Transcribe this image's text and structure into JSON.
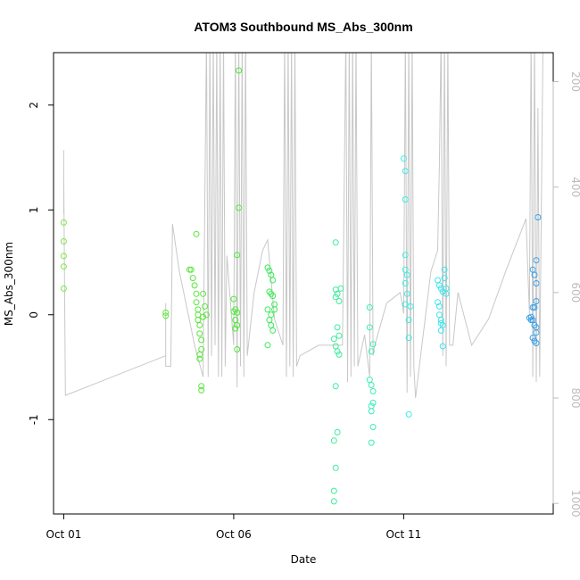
{
  "chart_data": {
    "type": "scatter",
    "title": "ATOM3 Southbound MS_Abs_300nm",
    "xlabel": "Date",
    "ylabel": "MS_Abs_300nm",
    "xlim": [
      -0.3,
      14.4
    ],
    "ylim": [
      -1.9,
      2.5
    ],
    "x_ticks": [
      {
        "value": 0,
        "label": "Oct 01"
      },
      {
        "value": 5,
        "label": "Oct 06"
      },
      {
        "value": 10,
        "label": "Oct 11"
      }
    ],
    "y_ticks": [
      {
        "value": -1,
        "label": "-1"
      },
      {
        "value": 0,
        "label": "0"
      },
      {
        "value": 1,
        "label": "1"
      },
      {
        "value": 2,
        "label": "2"
      }
    ],
    "right_axis": {
      "lim": [
        1020,
        145
      ],
      "ticks": [
        {
          "value": 200,
          "label": "200"
        },
        {
          "value": 400,
          "label": "400"
        },
        {
          "value": 600,
          "label": "600"
        },
        {
          "value": 800,
          "label": "800"
        },
        {
          "value": 1000,
          "label": "1000"
        }
      ],
      "color": "#bdbdbd"
    },
    "altitude_track": {
      "color": "#c8c8c8",
      "points": [
        [
          0.0,
          330
        ],
        [
          0.0,
          450
        ],
        [
          0.0,
          390
        ],
        [
          0.0,
          370
        ],
        [
          0.05,
          795
        ],
        [
          3.0,
          720
        ],
        [
          3.0,
          620
        ],
        [
          3.0,
          740
        ],
        [
          3.15,
          740
        ],
        [
          3.2,
          470
        ],
        [
          3.4,
          560
        ],
        [
          3.85,
          700
        ],
        [
          4.1,
          760
        ],
        [
          4.2,
          0
        ],
        [
          4.25,
          760
        ],
        [
          4.3,
          0
        ],
        [
          4.35,
          720
        ],
        [
          4.4,
          0
        ],
        [
          4.45,
          700
        ],
        [
          4.5,
          0
        ],
        [
          4.55,
          760
        ],
        [
          4.6,
          0
        ],
        [
          4.65,
          760
        ],
        [
          4.7,
          0
        ],
        [
          4.75,
          740
        ],
        [
          4.8,
          530
        ],
        [
          5.0,
          700
        ],
        [
          5.05,
          0
        ],
        [
          5.1,
          780
        ],
        [
          5.15,
          0
        ],
        [
          5.2,
          740
        ],
        [
          5.25,
          0
        ],
        [
          5.3,
          760
        ],
        [
          5.35,
          0
        ],
        [
          5.4,
          720
        ],
        [
          5.6,
          600
        ],
        [
          5.85,
          520
        ],
        [
          6.0,
          500
        ],
        [
          6.2,
          650
        ],
        [
          6.45,
          700
        ],
        [
          6.5,
          0
        ],
        [
          6.55,
          760
        ],
        [
          6.6,
          0
        ],
        [
          6.65,
          740
        ],
        [
          6.7,
          0
        ],
        [
          6.75,
          760
        ],
        [
          6.8,
          0
        ],
        [
          6.85,
          740
        ],
        [
          6.95,
          720
        ],
        [
          7.5,
          700
        ],
        [
          8.2,
          700
        ],
        [
          8.3,
          0
        ],
        [
          8.35,
          770
        ],
        [
          8.4,
          0
        ],
        [
          8.45,
          760
        ],
        [
          8.5,
          0
        ],
        [
          8.55,
          740
        ],
        [
          8.6,
          0
        ],
        [
          8.65,
          740
        ],
        [
          8.85,
          680
        ],
        [
          9.0,
          760
        ],
        [
          9.05,
          0
        ],
        [
          9.1,
          720
        ],
        [
          9.15,
          700
        ],
        [
          9.5,
          620
        ],
        [
          9.9,
          600
        ],
        [
          10.0,
          640
        ],
        [
          10.05,
          0
        ],
        [
          10.1,
          790
        ],
        [
          10.15,
          0
        ],
        [
          10.2,
          760
        ],
        [
          10.25,
          0
        ],
        [
          10.3,
          740
        ],
        [
          10.35,
          800
        ],
        [
          10.5,
          720
        ],
        [
          10.8,
          560
        ],
        [
          11.0,
          520
        ],
        [
          11.05,
          360
        ],
        [
          11.1,
          0
        ],
        [
          11.15,
          720
        ],
        [
          11.2,
          0
        ],
        [
          11.25,
          740
        ],
        [
          11.3,
          0
        ],
        [
          11.35,
          700
        ],
        [
          11.45,
          700
        ],
        [
          11.6,
          600
        ],
        [
          12.0,
          700
        ],
        [
          12.5,
          650
        ],
        [
          13.0,
          560
        ],
        [
          13.6,
          460
        ],
        [
          13.7,
          640
        ],
        [
          13.75,
          0
        ],
        [
          13.8,
          760
        ],
        [
          13.85,
          0
        ],
        [
          13.9,
          770
        ],
        [
          13.95,
          250
        ],
        [
          14.0,
          760
        ],
        [
          14.1,
          0
        ]
      ]
    },
    "series": [
      {
        "color_scale": "date",
        "points": [
          [
            0.0,
            0.88,
            "#7ee84a"
          ],
          [
            0.0,
            0.7,
            "#7ee84a"
          ],
          [
            0.0,
            0.56,
            "#7ee84a"
          ],
          [
            0.0,
            0.46,
            "#7ee84a"
          ],
          [
            0.0,
            0.25,
            "#7ee84a"
          ],
          [
            3.0,
            0.02,
            "#62e63a"
          ],
          [
            3.0,
            -0.01,
            "#62e63a"
          ],
          [
            3.7,
            0.43,
            "#58e63a"
          ],
          [
            3.75,
            0.43,
            "#58e63a"
          ],
          [
            3.8,
            0.35,
            "#58e63a"
          ],
          [
            3.85,
            0.28,
            "#58e63a"
          ],
          [
            3.9,
            0.2,
            "#58e63a"
          ],
          [
            3.9,
            0.12,
            "#58e63a"
          ],
          [
            3.95,
            0.05,
            "#58e63a"
          ],
          [
            3.95,
            0.0,
            "#58e63a"
          ],
          [
            3.95,
            -0.05,
            "#58e63a"
          ],
          [
            4.0,
            -0.1,
            "#58e63a"
          ],
          [
            4.0,
            -0.18,
            "#58e63a"
          ],
          [
            4.05,
            -0.24,
            "#58e63a"
          ],
          [
            4.05,
            -0.33,
            "#58e63a"
          ],
          [
            4.0,
            -0.38,
            "#58e63a"
          ],
          [
            4.0,
            -0.42,
            "#58e63a"
          ],
          [
            4.05,
            -0.68,
            "#58e63a"
          ],
          [
            4.05,
            -0.72,
            "#58e63a"
          ],
          [
            3.9,
            0.77,
            "#58e63a"
          ],
          [
            4.1,
            0.2,
            "#58e63a"
          ],
          [
            4.15,
            0.08,
            "#58e63a"
          ],
          [
            4.2,
            0.0,
            "#58e63a"
          ],
          [
            4.1,
            -0.02,
            "#58e63a"
          ],
          [
            5.0,
            0.15,
            "#4ee83a"
          ],
          [
            5.05,
            0.05,
            "#4ee83a"
          ],
          [
            5.1,
            0.02,
            "#4ee83a"
          ],
          [
            5.05,
            -0.05,
            "#4ee83a"
          ],
          [
            5.1,
            -0.1,
            "#4ee83a"
          ],
          [
            5.05,
            -0.13,
            "#4ee83a"
          ],
          [
            5.1,
            -0.33,
            "#4ee83a"
          ],
          [
            5.1,
            0.57,
            "#4ee83a"
          ],
          [
            5.15,
            1.02,
            "#4ee83a"
          ],
          [
            5.15,
            2.33,
            "#4ee83a"
          ],
          [
            5.0,
            0.03,
            "#4ee83a"
          ],
          [
            6.0,
            0.45,
            "#3aeb58"
          ],
          [
            6.05,
            0.42,
            "#3aeb58"
          ],
          [
            6.1,
            0.38,
            "#3aeb58"
          ],
          [
            6.15,
            0.33,
            "#3aeb58"
          ],
          [
            6.05,
            0.22,
            "#3aeb58"
          ],
          [
            6.1,
            0.2,
            "#3aeb58"
          ],
          [
            6.15,
            0.18,
            "#3aeb58"
          ],
          [
            6.0,
            0.05,
            "#3aeb58"
          ],
          [
            6.1,
            0.0,
            "#3aeb58"
          ],
          [
            6.05,
            -0.05,
            "#3aeb58"
          ],
          [
            6.1,
            -0.1,
            "#3aeb58"
          ],
          [
            6.15,
            -0.15,
            "#3aeb58"
          ],
          [
            6.0,
            -0.29,
            "#3aeb58"
          ],
          [
            6.2,
            0.1,
            "#3aeb58"
          ],
          [
            6.2,
            0.05,
            "#3aeb58"
          ],
          [
            8.0,
            0.69,
            "#3aee9a"
          ],
          [
            8.0,
            0.24,
            "#3aee9a"
          ],
          [
            8.05,
            0.2,
            "#3aee9a"
          ],
          [
            8.1,
            0.13,
            "#3aee9a"
          ],
          [
            8.0,
            0.17,
            "#3aee9a"
          ],
          [
            8.15,
            0.25,
            "#3aee9a"
          ],
          [
            8.05,
            -0.12,
            "#3aee9a"
          ],
          [
            8.1,
            -0.2,
            "#3aee9a"
          ],
          [
            7.95,
            -0.23,
            "#3aee9a"
          ],
          [
            8.0,
            -0.3,
            "#3aee9a"
          ],
          [
            8.05,
            -0.35,
            "#3aee9a"
          ],
          [
            8.1,
            -0.38,
            "#3aee9a"
          ],
          [
            8.0,
            -0.68,
            "#3aee9a"
          ],
          [
            8.05,
            -1.12,
            "#3aee9a"
          ],
          [
            7.95,
            -1.2,
            "#3aee9a"
          ],
          [
            8.0,
            -1.46,
            "#3aee9a"
          ],
          [
            7.95,
            -1.68,
            "#3aee9a"
          ],
          [
            7.95,
            -1.78,
            "#3aee9a"
          ],
          [
            9.0,
            0.07,
            "#3aeeb8"
          ],
          [
            9.0,
            -0.12,
            "#3aeeb8"
          ],
          [
            9.05,
            -0.35,
            "#3aeeb8"
          ],
          [
            9.1,
            -0.28,
            "#3aeeb8"
          ],
          [
            9.0,
            -0.62,
            "#3aeeb8"
          ],
          [
            9.05,
            -0.67,
            "#3aeeb8"
          ],
          [
            9.1,
            -0.73,
            "#3aeeb8"
          ],
          [
            9.1,
            -0.84,
            "#3aeeb8"
          ],
          [
            9.05,
            -0.87,
            "#3aeeb8"
          ],
          [
            9.05,
            -0.92,
            "#3aeeb8"
          ],
          [
            9.1,
            -1.07,
            "#3aeeb8"
          ],
          [
            9.05,
            -1.22,
            "#3aeeb8"
          ],
          [
            10.0,
            1.49,
            "#3aeee0"
          ],
          [
            10.05,
            1.37,
            "#3aeee0"
          ],
          [
            10.05,
            1.1,
            "#3aeee0"
          ],
          [
            10.05,
            0.57,
            "#3aeee0"
          ],
          [
            10.05,
            0.43,
            "#3aeee0"
          ],
          [
            10.1,
            0.38,
            "#3aeee0"
          ],
          [
            10.05,
            0.3,
            "#3aeee0"
          ],
          [
            10.1,
            0.2,
            "#3aeee0"
          ],
          [
            10.05,
            0.1,
            "#3aeee0"
          ],
          [
            10.2,
            0.08,
            "#3aeee0"
          ],
          [
            10.15,
            -0.05,
            "#3aeee0"
          ],
          [
            10.15,
            -0.22,
            "#3aeee0"
          ],
          [
            10.15,
            -0.95,
            "#3aeee0"
          ],
          [
            11.0,
            0.33,
            "#3ae6ee"
          ],
          [
            11.05,
            0.28,
            "#3ae6ee"
          ],
          [
            11.1,
            0.25,
            "#3ae6ee"
          ],
          [
            11.15,
            0.22,
            "#3ae6ee"
          ],
          [
            11.2,
            0.35,
            "#3ae6ee"
          ],
          [
            11.2,
            0.43,
            "#3ae6ee"
          ],
          [
            11.25,
            0.2,
            "#3ae6ee"
          ],
          [
            11.25,
            0.25,
            "#3ae6ee"
          ],
          [
            11.0,
            0.12,
            "#3ae6ee"
          ],
          [
            11.05,
            0.08,
            "#3ae6ee"
          ],
          [
            11.05,
            0.0,
            "#3ae6ee"
          ],
          [
            11.1,
            -0.05,
            "#3ae6ee"
          ],
          [
            11.1,
            -0.08,
            "#3ae6ee"
          ],
          [
            11.15,
            -0.1,
            "#3ae6ee"
          ],
          [
            11.1,
            -0.15,
            "#3ae6ee"
          ],
          [
            11.15,
            -0.3,
            "#3ae6ee"
          ],
          [
            13.8,
            0.43,
            "#3aa0e6"
          ],
          [
            13.85,
            0.38,
            "#3aa0e6"
          ],
          [
            13.9,
            0.3,
            "#3aa0e6"
          ],
          [
            13.9,
            0.52,
            "#3aa0e6"
          ],
          [
            13.95,
            0.93,
            "#3aa0e6"
          ],
          [
            13.9,
            0.13,
            "#3aa0e6"
          ],
          [
            13.85,
            0.07,
            "#3aa0e6"
          ],
          [
            13.8,
            0.07,
            "#3aa0e6"
          ],
          [
            13.75,
            -0.02,
            "#3aa0e6"
          ],
          [
            13.7,
            -0.03,
            "#3aa0e6"
          ],
          [
            13.75,
            -0.05,
            "#3aa0e6"
          ],
          [
            13.8,
            -0.05,
            "#3aa0e6"
          ],
          [
            13.85,
            -0.1,
            "#3aa0e6"
          ],
          [
            13.9,
            -0.12,
            "#3aa0e6"
          ],
          [
            13.9,
            -0.17,
            "#3aa0e6"
          ],
          [
            13.8,
            -0.22,
            "#3aa0e6"
          ],
          [
            13.85,
            -0.25,
            "#3aa0e6"
          ],
          [
            13.9,
            -0.27,
            "#3aa0e6"
          ]
        ]
      }
    ]
  }
}
